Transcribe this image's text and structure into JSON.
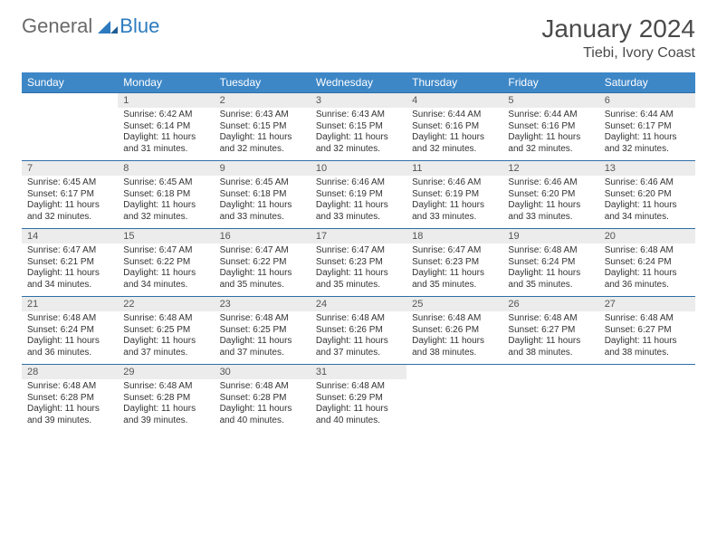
{
  "logo": {
    "general": "General",
    "blue": "Blue"
  },
  "title": "January 2024",
  "location": "Tiebi, Ivory Coast",
  "colors": {
    "header_bg": "#3d87c7",
    "header_text": "#ffffff",
    "daynum_bg": "#ececec",
    "border": "#2e6fa8",
    "text": "#333333",
    "logo_gray": "#6a6a6a",
    "logo_blue": "#2d7bbf"
  },
  "days_of_week": [
    "Sunday",
    "Monday",
    "Tuesday",
    "Wednesday",
    "Thursday",
    "Friday",
    "Saturday"
  ],
  "weeks": [
    [
      null,
      {
        "n": "1",
        "sr": "6:42 AM",
        "ss": "6:14 PM",
        "dl": "11 hours and 31 minutes."
      },
      {
        "n": "2",
        "sr": "6:43 AM",
        "ss": "6:15 PM",
        "dl": "11 hours and 32 minutes."
      },
      {
        "n": "3",
        "sr": "6:43 AM",
        "ss": "6:15 PM",
        "dl": "11 hours and 32 minutes."
      },
      {
        "n": "4",
        "sr": "6:44 AM",
        "ss": "6:16 PM",
        "dl": "11 hours and 32 minutes."
      },
      {
        "n": "5",
        "sr": "6:44 AM",
        "ss": "6:16 PM",
        "dl": "11 hours and 32 minutes."
      },
      {
        "n": "6",
        "sr": "6:44 AM",
        "ss": "6:17 PM",
        "dl": "11 hours and 32 minutes."
      }
    ],
    [
      {
        "n": "7",
        "sr": "6:45 AM",
        "ss": "6:17 PM",
        "dl": "11 hours and 32 minutes."
      },
      {
        "n": "8",
        "sr": "6:45 AM",
        "ss": "6:18 PM",
        "dl": "11 hours and 32 minutes."
      },
      {
        "n": "9",
        "sr": "6:45 AM",
        "ss": "6:18 PM",
        "dl": "11 hours and 33 minutes."
      },
      {
        "n": "10",
        "sr": "6:46 AM",
        "ss": "6:19 PM",
        "dl": "11 hours and 33 minutes."
      },
      {
        "n": "11",
        "sr": "6:46 AM",
        "ss": "6:19 PM",
        "dl": "11 hours and 33 minutes."
      },
      {
        "n": "12",
        "sr": "6:46 AM",
        "ss": "6:20 PM",
        "dl": "11 hours and 33 minutes."
      },
      {
        "n": "13",
        "sr": "6:46 AM",
        "ss": "6:20 PM",
        "dl": "11 hours and 34 minutes."
      }
    ],
    [
      {
        "n": "14",
        "sr": "6:47 AM",
        "ss": "6:21 PM",
        "dl": "11 hours and 34 minutes."
      },
      {
        "n": "15",
        "sr": "6:47 AM",
        "ss": "6:22 PM",
        "dl": "11 hours and 34 minutes."
      },
      {
        "n": "16",
        "sr": "6:47 AM",
        "ss": "6:22 PM",
        "dl": "11 hours and 35 minutes."
      },
      {
        "n": "17",
        "sr": "6:47 AM",
        "ss": "6:23 PM",
        "dl": "11 hours and 35 minutes."
      },
      {
        "n": "18",
        "sr": "6:47 AM",
        "ss": "6:23 PM",
        "dl": "11 hours and 35 minutes."
      },
      {
        "n": "19",
        "sr": "6:48 AM",
        "ss": "6:24 PM",
        "dl": "11 hours and 35 minutes."
      },
      {
        "n": "20",
        "sr": "6:48 AM",
        "ss": "6:24 PM",
        "dl": "11 hours and 36 minutes."
      }
    ],
    [
      {
        "n": "21",
        "sr": "6:48 AM",
        "ss": "6:24 PM",
        "dl": "11 hours and 36 minutes."
      },
      {
        "n": "22",
        "sr": "6:48 AM",
        "ss": "6:25 PM",
        "dl": "11 hours and 37 minutes."
      },
      {
        "n": "23",
        "sr": "6:48 AM",
        "ss": "6:25 PM",
        "dl": "11 hours and 37 minutes."
      },
      {
        "n": "24",
        "sr": "6:48 AM",
        "ss": "6:26 PM",
        "dl": "11 hours and 37 minutes."
      },
      {
        "n": "25",
        "sr": "6:48 AM",
        "ss": "6:26 PM",
        "dl": "11 hours and 38 minutes."
      },
      {
        "n": "26",
        "sr": "6:48 AM",
        "ss": "6:27 PM",
        "dl": "11 hours and 38 minutes."
      },
      {
        "n": "27",
        "sr": "6:48 AM",
        "ss": "6:27 PM",
        "dl": "11 hours and 38 minutes."
      }
    ],
    [
      {
        "n": "28",
        "sr": "6:48 AM",
        "ss": "6:28 PM",
        "dl": "11 hours and 39 minutes."
      },
      {
        "n": "29",
        "sr": "6:48 AM",
        "ss": "6:28 PM",
        "dl": "11 hours and 39 minutes."
      },
      {
        "n": "30",
        "sr": "6:48 AM",
        "ss": "6:28 PM",
        "dl": "11 hours and 40 minutes."
      },
      {
        "n": "31",
        "sr": "6:48 AM",
        "ss": "6:29 PM",
        "dl": "11 hours and 40 minutes."
      },
      null,
      null,
      null
    ]
  ],
  "labels": {
    "sunrise": "Sunrise:",
    "sunset": "Sunset:",
    "daylight": "Daylight:"
  }
}
